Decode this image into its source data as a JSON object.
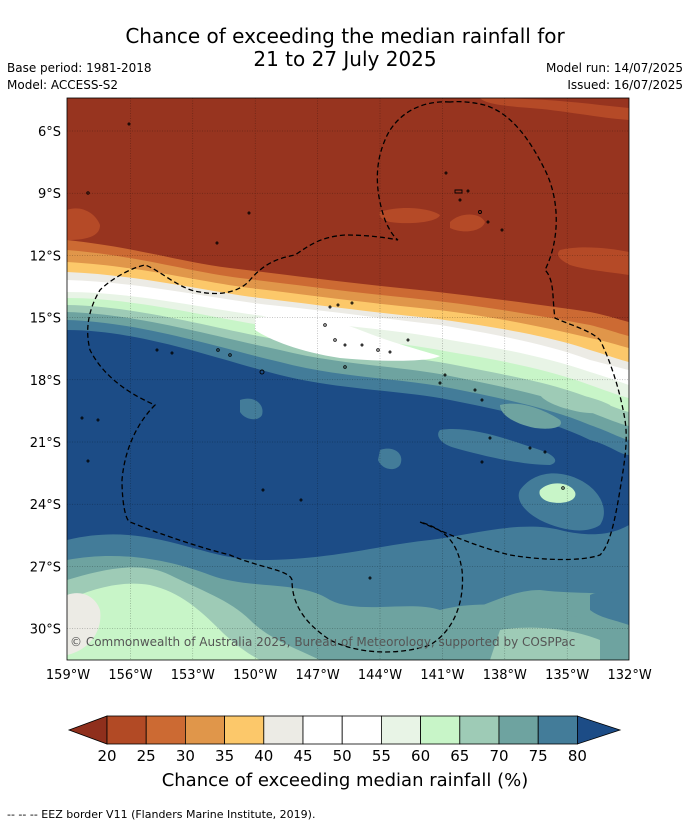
{
  "title_line1": "Chance of exceeding the median rainfall for",
  "title_line2": "21 to 27 July 2025",
  "meta_left": [
    "Base period: 1981-2018",
    "Model: ACCESS-S2"
  ],
  "meta_right": [
    "Model run: 14/07/2025",
    "Issued: 16/07/2025"
  ],
  "lat_labels": [
    "6°S",
    "9°S",
    "12°S",
    "15°S",
    "18°S",
    "21°S",
    "24°S",
    "27°S",
    "30°S"
  ],
  "lon_labels": [
    "159°W",
    "156°W",
    "153°W",
    "150°W",
    "147°W",
    "144°W",
    "141°W",
    "138°W",
    "135°W",
    "132°W"
  ],
  "copyright": "© Commonwealth of Australia 2025, Bureau of Meteorology, supported by COSPPac",
  "colorbar": {
    "title": "Chance of exceeding median rainfall (%)",
    "ticks": [
      "20",
      "25",
      "30",
      "35",
      "40",
      "45",
      "50",
      "55",
      "60",
      "65",
      "70",
      "75",
      "80"
    ],
    "colors": [
      "#8f2f1c",
      "#b24a25",
      "#cc6a33",
      "#e0964a",
      "#fcc86a",
      "#ecebe5",
      "#ffffff",
      "#ffffff",
      "#e8f4e6",
      "#c8f5c8",
      "#9ecbb6",
      "#6ea3a0",
      "#437c99",
      "#1c4c86"
    ]
  },
  "footnote": "--  --  -- EEZ border V11 (Flanders Marine Institute, 2019).",
  "colors": {
    "dark_red": "#97341f",
    "red": "#b54a27",
    "orange": "#d9853f",
    "light_orange": "#fcc86a",
    "grey": "#ecebe5",
    "white": "#ffffff",
    "pale_green": "#e8f4e6",
    "light_green": "#c8f5c8",
    "sea_green": "#9ecbb6",
    "teal": "#6ea3a0",
    "steel": "#437c99",
    "navy": "#1c4c86"
  }
}
